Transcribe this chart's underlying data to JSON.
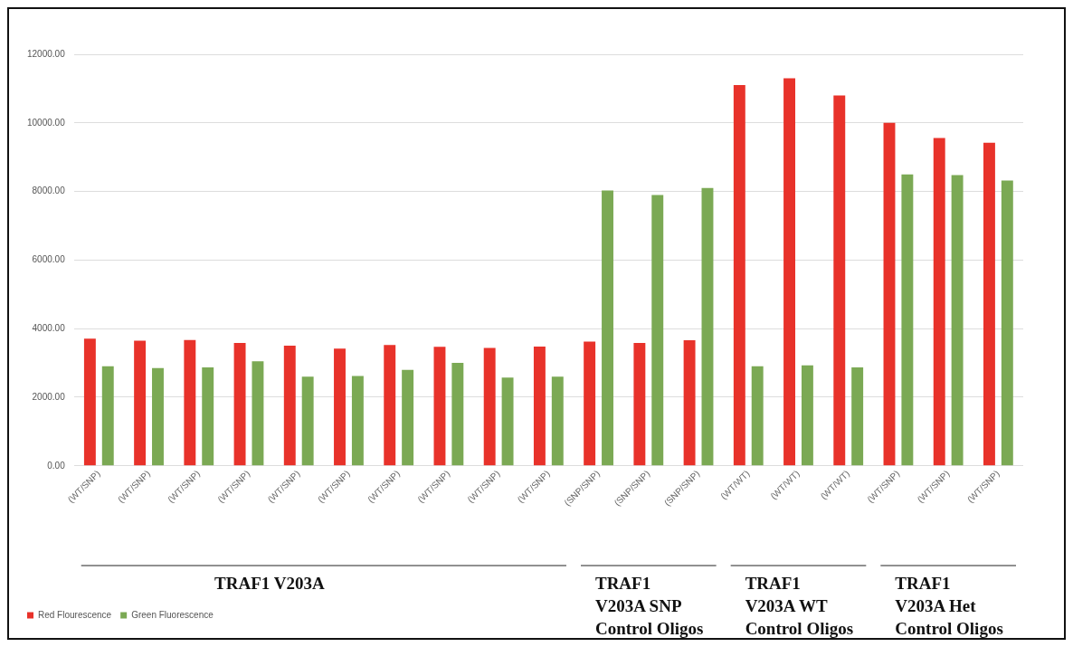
{
  "chart_data": {
    "type": "bar",
    "categories": [
      "(WT/SNP)",
      "(WT/SNP)",
      "(WT/SNP)",
      "(WT/SNP)",
      "(WT/SNP)",
      "(WT/SNP)",
      "(WT/SNP)",
      "(WT/SNP)",
      "(WT/SNP)",
      "(WT/SNP)",
      "(SNP/SNP)",
      "(SNP/SNP)",
      "(SNP/SNP)",
      "(WT/WT)",
      "(WT/WT)",
      "(WT/WT)",
      "(WT/SNP)",
      "(WT/SNP)",
      "(WT/SNP)"
    ],
    "series": [
      {
        "name": "Red Flourescence",
        "color": "#e8322a",
        "values": [
          3710,
          3650,
          3670,
          3580,
          3500,
          3420,
          3520,
          3470,
          3440,
          3480,
          3620,
          3580,
          3660,
          11100,
          11300,
          10800,
          10000,
          9560,
          9420
        ]
      },
      {
        "name": "Green Fluorescence",
        "color": "#7ba954",
        "values": [
          2900,
          2850,
          2870,
          3050,
          2600,
          2620,
          2800,
          3000,
          2570,
          2600,
          8030,
          7900,
          8100,
          2900,
          2930,
          2870,
          8500,
          8480,
          8320
        ]
      }
    ],
    "ylim": [
      0,
      12000
    ],
    "yticks": [
      {
        "value": 0,
        "label": "0.00"
      },
      {
        "value": 2000,
        "label": "2000.00"
      },
      {
        "value": 4000,
        "label": "4000.00"
      },
      {
        "value": 6000,
        "label": "6000.00"
      },
      {
        "value": 8000,
        "label": "8000.00"
      },
      {
        "value": 10000,
        "label": "10000.00"
      },
      {
        "value": 12000,
        "label": "12000.00"
      }
    ],
    "grid": "y",
    "legend": "bottom left",
    "annotations": [
      "TRAF1 V203A",
      "TRAF1 V203A SNP Control Oligos",
      "TRAF1 V203A WT Control Oligos",
      "TRAF1 V203A Het Control Oligos"
    ]
  }
}
